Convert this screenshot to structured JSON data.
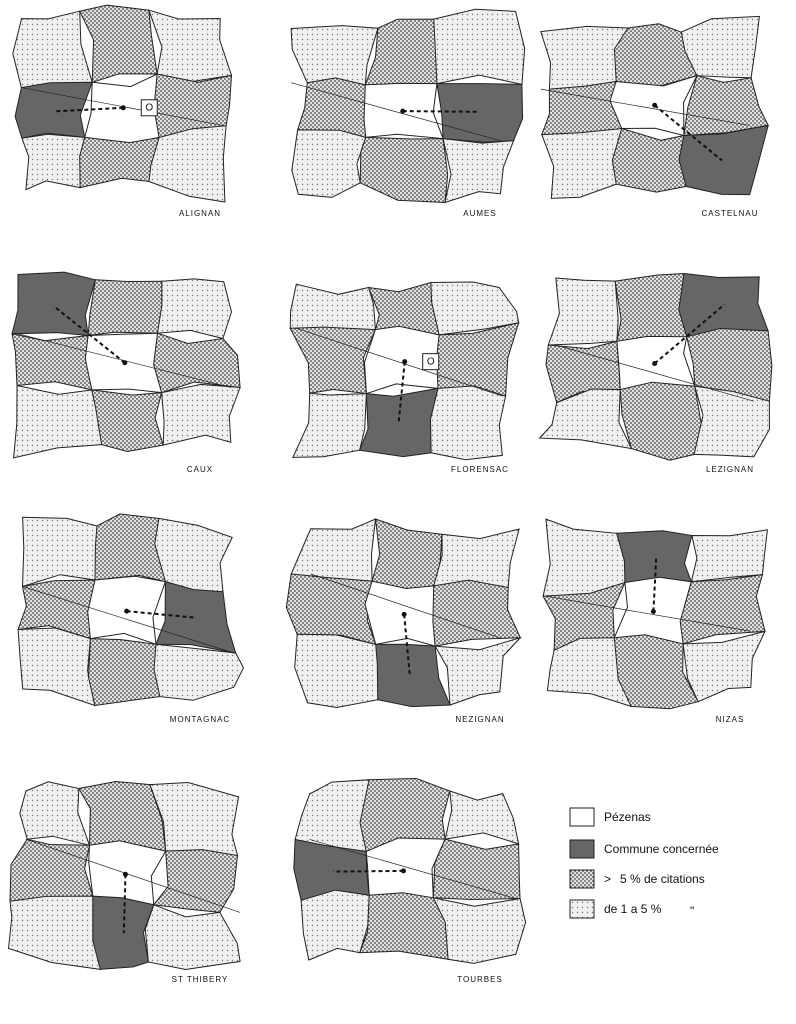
{
  "maps": [
    {
      "name": "ALIGNAN",
      "marker": "O"
    },
    {
      "name": "AUMES"
    },
    {
      "name": "CASTELNAU"
    },
    {
      "name": "CAUX"
    },
    {
      "name": "FLORENSAC",
      "marker": "O"
    },
    {
      "name": "LEZIGNAN"
    },
    {
      "name": "MONTAGNAC"
    },
    {
      "name": "NEZIGNAN"
    },
    {
      "name": "NIZAS"
    },
    {
      "name": "ST THIBERY"
    },
    {
      "name": "TOURBES"
    }
  ],
  "legend": [
    {
      "label": "Pézenas"
    },
    {
      "label": "Commune concernée"
    },
    {
      "symbol": ">",
      "label": "5 % de citations"
    },
    {
      "label": "de 1 a 5 %",
      "ditto": "\""
    }
  ]
}
